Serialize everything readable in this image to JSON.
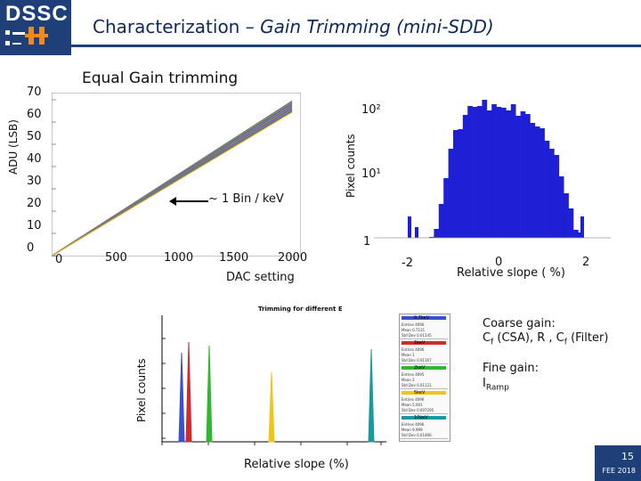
{
  "header": {
    "logo": "DSSC",
    "title_main": "Characterization – ",
    "title_italic": "Gain Trimming (mini-SDD)"
  },
  "section_title": "Equal Gain trimming",
  "left_plot": {
    "ylabel": "ADU (LSB)",
    "xlabel": "DAC setting",
    "y_ticks": [
      "70",
      "60",
      "50",
      "40",
      "30",
      "20",
      "10",
      "0"
    ],
    "x_ticks": [
      "0",
      "500",
      "1000",
      "1500",
      "2000"
    ],
    "annotation": "~ 1 Bin / keV"
  },
  "hist_plot": {
    "ylabel": "Pixel counts",
    "xlabel": "Relative slope ( %)",
    "y_ticks": [
      "10²",
      "10¹",
      "1"
    ],
    "x_ticks": [
      "-2",
      "0",
      "2"
    ]
  },
  "bottom_plot": {
    "title": "Trimming for different E",
    "ylabel": "Pixel counts",
    "xlabel": "Relative slope (%)"
  },
  "legend": [
    {
      "title": "0.7keV",
      "rows": [
        "Entries 4096",
        "Mean 0.7121",
        "Std Dev 0.01145"
      ],
      "color": "#3b4fd1"
    },
    {
      "title": "1keV",
      "rows": [
        "Entries 4096",
        "Mean 1",
        "Std Dev 0.01167"
      ],
      "color": "#d12b2b"
    },
    {
      "title": "2keV",
      "rows": [
        "Entries 4095",
        "Mean 2",
        "Std Dev 0.01121"
      ],
      "color": "#2fb82f"
    },
    {
      "title": "5keV",
      "rows": [
        "Entries 4096",
        "Mean 5.001",
        "Std Dev 0.007295"
      ],
      "color": "#f0c419"
    },
    {
      "title": "10keV",
      "rows": [
        "Entries 4096",
        "Mean 9.999",
        "Std Dev 0.01466"
      ],
      "color": "#1a9aa0"
    }
  ],
  "notes": {
    "coarse_label": "Coarse gain:",
    "coarse_detail_a": "C",
    "coarse_sub_a": "f",
    "coarse_detail_b": " (CSA), R , C",
    "coarse_sub_b": "f",
    "coarse_detail_c": " (Filter)",
    "fine_label": "Fine gain:",
    "fine_detail": "I",
    "fine_sub": "Ramp"
  },
  "footer": {
    "page": "15",
    "date": "FEE 2018"
  },
  "colors": {
    "brand": "#1f3f78",
    "histogram": "#1f1fd6"
  }
}
